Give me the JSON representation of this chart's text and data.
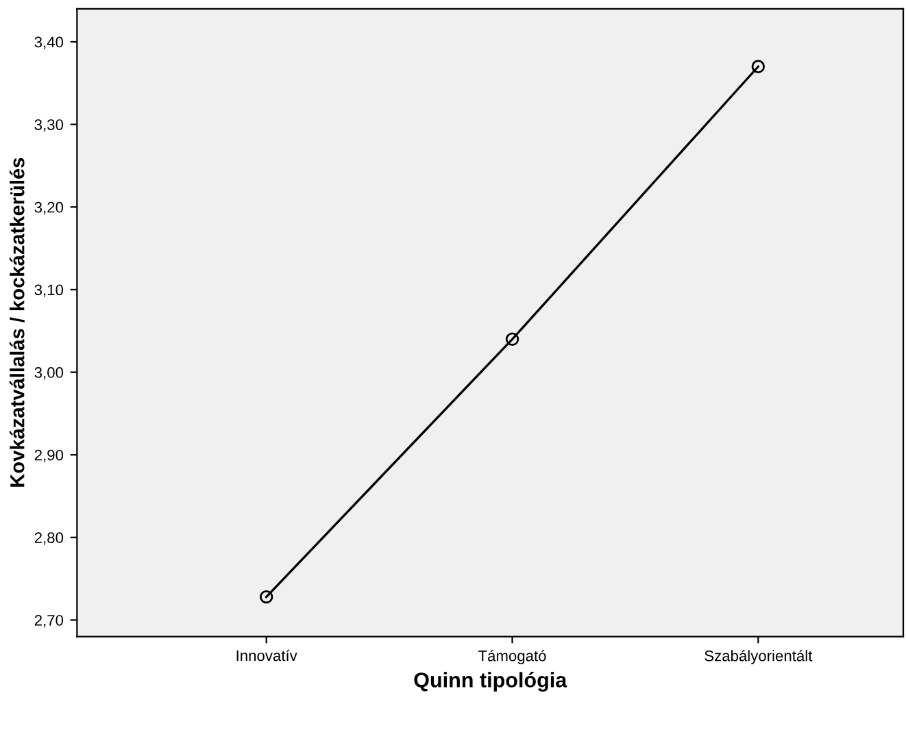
{
  "chart_data": {
    "type": "line",
    "xlabel": "Quinn tipológia",
    "ylabel": "Kovkázatvállalás / kockázatkerülés",
    "categories": [
      "Innovatív",
      "Támogató",
      "Szabályorientált"
    ],
    "series": [
      {
        "color": "#000000",
        "values": [
          2.728,
          3.04,
          3.37
        ]
      }
    ],
    "marker": "circle",
    "line_style": "solid",
    "grid": false,
    "legend": false,
    "ylim": [
      2.68,
      3.44
    ],
    "yticks": [
      {
        "value": 2.7,
        "label": "2,70"
      },
      {
        "value": 2.8,
        "label": "2,80"
      },
      {
        "value": 2.9,
        "label": "2,90"
      },
      {
        "value": 3.0,
        "label": "3,00"
      },
      {
        "value": 3.1,
        "label": "3,10"
      },
      {
        "value": 3.2,
        "label": "3,20"
      },
      {
        "value": 3.3,
        "label": "3,30"
      },
      {
        "value": 3.4,
        "label": "3,40"
      }
    ]
  }
}
